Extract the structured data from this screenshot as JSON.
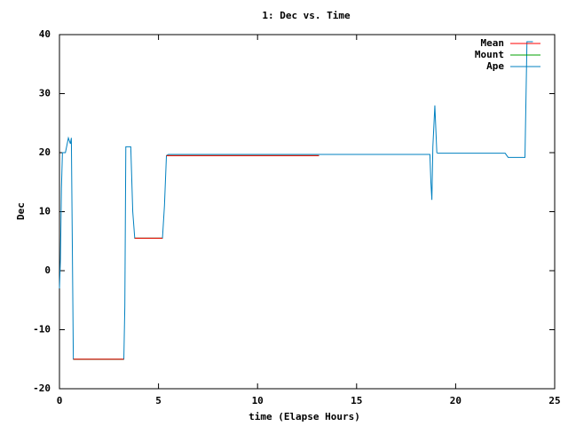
{
  "chart_data": {
    "type": "line",
    "title": "1: Dec vs. Time",
    "xlabel": "time (Elapse Hours)",
    "ylabel": "Dec",
    "xlim": [
      0,
      25
    ],
    "xticks": [
      0,
      5,
      10,
      15,
      20,
      25
    ],
    "ylim": [
      -20,
      40
    ],
    "yticks": [
      -20,
      -10,
      0,
      10,
      20,
      30,
      40
    ],
    "legend": "upper right",
    "series": [
      {
        "name": "Mean",
        "color": "#ff0000",
        "x": [
          0.7,
          3.25,
          3.5,
          3.8,
          5.2,
          5.3,
          5.4,
          13.1
        ],
        "values": [
          -15,
          -15,
          null,
          5.5,
          5.5,
          null,
          19.5,
          19.5
        ]
      },
      {
        "name": "Mount",
        "color": "#00a000",
        "x": [
          0.7,
          3.25,
          3.5,
          3.8,
          5.2,
          5.3,
          5.4,
          13.1
        ],
        "values": [
          -15,
          -15,
          null,
          5.5,
          5.5,
          null,
          19.5,
          19.5
        ]
      },
      {
        "name": "Ape",
        "color": "#0080c0",
        "x": [
          0,
          0.05,
          0.1,
          0.15,
          0.3,
          0.45,
          0.55,
          0.6,
          0.65,
          0.7,
          3.25,
          3.3,
          3.35,
          3.6,
          3.7,
          3.8,
          5.2,
          5.3,
          5.4,
          5.5,
          18.7,
          18.75,
          18.8,
          18.85,
          18.95,
          19.05,
          19.1,
          22.5,
          22.65,
          23.5,
          23.55,
          23.6,
          23.9
        ],
        "values": [
          -3,
          2,
          14,
          20,
          20,
          22.5,
          21.5,
          22.5,
          4,
          -15,
          -15,
          -6,
          21,
          21,
          10,
          5.5,
          5.5,
          11,
          19.5,
          19.7,
          19.7,
          15,
          12,
          21,
          28,
          20,
          19.9,
          19.9,
          19.2,
          19.2,
          29,
          38.8,
          38.8
        ]
      }
    ]
  }
}
